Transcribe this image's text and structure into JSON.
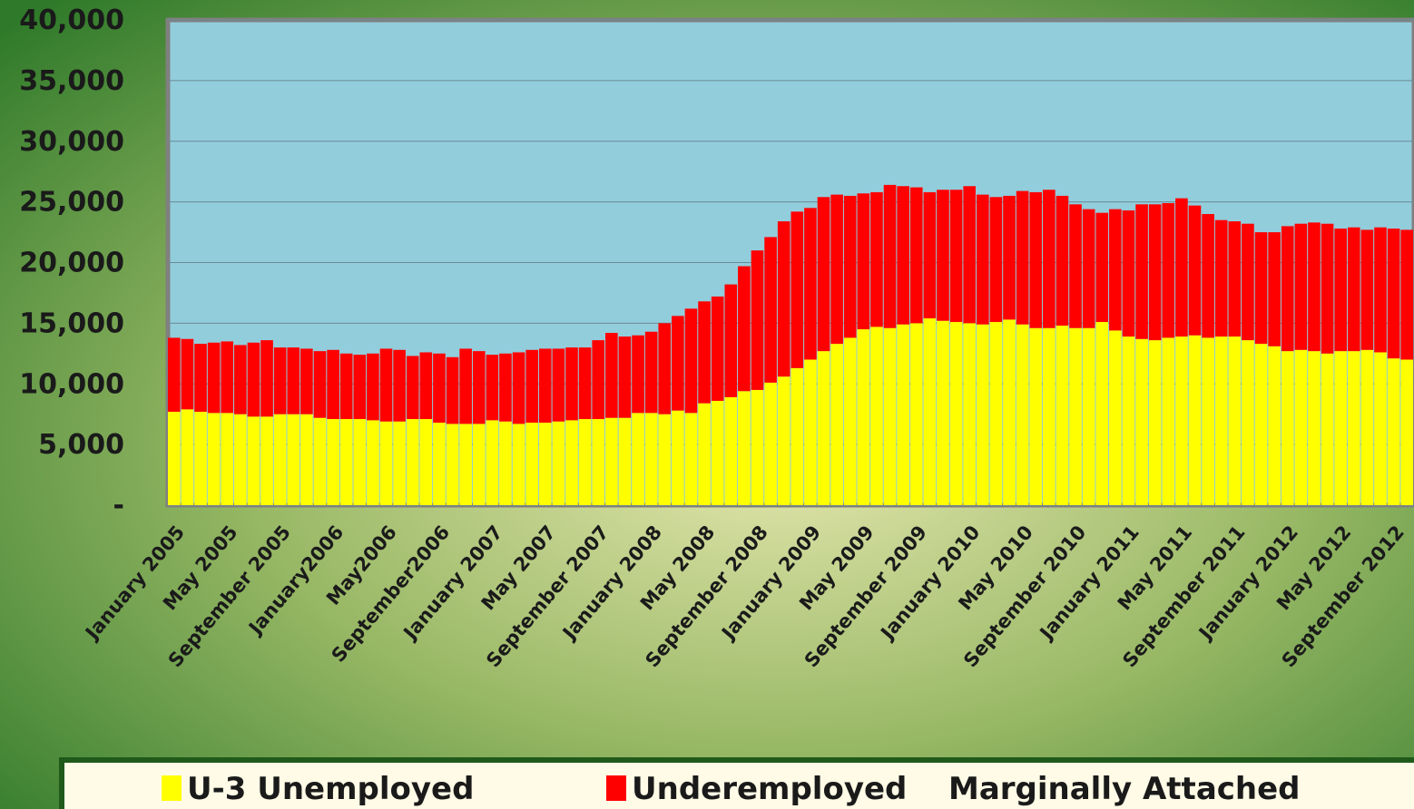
{
  "chart_data": {
    "type": "stacked_bar",
    "categories": [
      "January 2005",
      null,
      null,
      null,
      "May 2005",
      null,
      null,
      null,
      "September 2005",
      null,
      null,
      null,
      "January2006",
      null,
      null,
      null,
      "May2006",
      null,
      null,
      null,
      "September2006",
      null,
      null,
      null,
      "January 2007",
      null,
      null,
      null,
      "May 2007",
      null,
      null,
      null,
      "September 2007",
      null,
      null,
      null,
      "January 2008",
      null,
      null,
      null,
      "May 2008",
      null,
      null,
      null,
      "September 2008",
      null,
      null,
      null,
      "January 2009",
      null,
      null,
      null,
      "May 2009",
      null,
      null,
      null,
      "September 2009",
      null,
      null,
      null,
      "January 2010",
      null,
      null,
      null,
      "May 2010",
      null,
      null,
      null,
      "September 2010",
      null,
      null,
      null,
      "January 2011",
      null,
      null,
      null,
      "May 2011",
      null,
      null,
      null,
      "September 2011",
      null,
      null,
      null,
      "January 2012",
      null,
      null,
      null,
      "May 2012",
      null,
      null,
      null,
      "September 2012",
      null
    ],
    "series": [
      {
        "name": "U-3 Unemployed",
        "color": "#ffff00",
        "values": [
          7700,
          7900,
          7700,
          7600,
          7600,
          7500,
          7300,
          7300,
          7500,
          7500,
          7500,
          7200,
          7100,
          7100,
          7100,
          7000,
          6900,
          6900,
          7100,
          7100,
          6800,
          6700,
          6700,
          6700,
          7000,
          6900,
          6700,
          6800,
          6800,
          6900,
          7000,
          7100,
          7100,
          7200,
          7200,
          7600,
          7600,
          7500,
          7800,
          7600,
          8400,
          8600,
          8900,
          9400,
          9500,
          10100,
          10600,
          11300,
          12000,
          12700,
          13300,
          13800,
          14500,
          14700,
          14600,
          14900,
          15000,
          15400,
          15200,
          15100,
          15000,
          14900,
          15100,
          15300,
          14900,
          14600,
          14600,
          14800,
          14600,
          14600,
          15100,
          14400,
          13900,
          13700,
          13600,
          13800,
          13900,
          14000,
          13800,
          13900,
          13900,
          13600,
          13300,
          13100,
          12700,
          12800,
          12700,
          12500,
          12700,
          12700,
          12800,
          12600,
          12100,
          12000
        ]
      },
      {
        "name": "Underemployed",
        "color": "#ff0000",
        "values": [
          6100,
          5800,
          5600,
          5800,
          5900,
          5700,
          6100,
          6300,
          5500,
          5500,
          5400,
          5500,
          5700,
          5400,
          5300,
          5500,
          6000,
          5900,
          5200,
          5500,
          5700,
          5500,
          6200,
          6000,
          5400,
          5600,
          5900,
          6000,
          6100,
          6000,
          6000,
          5900,
          6500,
          7000,
          6700,
          6400,
          6700,
          7500,
          7800,
          8600,
          8400,
          8600,
          9300,
          10300,
          11500,
          12000,
          12800,
          12900,
          12500,
          12700,
          12300,
          11700,
          11200,
          11100,
          11800,
          11400,
          11200,
          10400,
          10800,
          10900,
          11300,
          10700,
          10300,
          10200,
          11000,
          11200,
          11400,
          10700,
          10200,
          9800,
          9000,
          10000,
          10400,
          11100,
          11200,
          11100,
          11400,
          10700,
          10200,
          9600,
          9500,
          9600,
          9200,
          9400,
          10300,
          10400,
          10600,
          10700,
          10100,
          10200,
          9900,
          10300,
          10700,
          10700
        ]
      }
    ],
    "legend_note": "Marginally Attached",
    "ylim": [
      0,
      40000
    ],
    "yticks": [
      {
        "value": 0,
        "label": "-"
      },
      {
        "value": 5000,
        "label": "5,000"
      },
      {
        "value": 10000,
        "label": "10,000"
      },
      {
        "value": 15000,
        "label": "15,000"
      },
      {
        "value": 20000,
        "label": "20,000"
      },
      {
        "value": 25000,
        "label": "25,000"
      },
      {
        "value": 30000,
        "label": "30,000"
      },
      {
        "value": 35000,
        "label": "35,000"
      },
      {
        "value": 40000,
        "label": "40,000"
      }
    ],
    "grid": true,
    "plot_background": "#92cddc"
  }
}
